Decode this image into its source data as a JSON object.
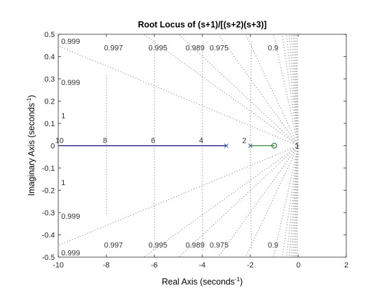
{
  "chart_data": {
    "type": "line",
    "title": "Root Locus of (s+1)/[(s+2)(s+3)]",
    "xlabel": "Real Axis (seconds",
    "xlabel_sup": "-1",
    "xlabel_close": ")",
    "ylabel": "Imaginary Axis (seconds",
    "ylabel_sup": "-1",
    "ylabel_close": ")",
    "xlim": [
      -10,
      2
    ],
    "ylim": [
      -0.5,
      0.5
    ],
    "xticks": [
      -10,
      -8,
      -6,
      -4,
      -2,
      0,
      2
    ],
    "xtick_labels": [
      "-10",
      "-8",
      "-6",
      "-4",
      "-2",
      "0",
      "2"
    ],
    "yticks": [
      -0.5,
      -0.4,
      -0.3,
      -0.2,
      -0.1,
      0,
      0.1,
      0.2,
      0.3,
      0.4,
      0.5
    ],
    "ytick_labels": [
      "-0.5",
      "-0.4",
      "-0.3",
      "-0.2",
      "-0.1",
      "0",
      "0.1",
      "0.2",
      "0.3",
      "0.4",
      "0.5"
    ],
    "series": [
      {
        "color": "#0000b0",
        "points": [
          [
            -10,
            0
          ],
          [
            -3,
            0
          ]
        ]
      },
      {
        "color": "#2a8a2a",
        "points": [
          [
            -2,
            0
          ],
          [
            -1,
            0
          ]
        ]
      }
    ],
    "poles": [
      [
        -3,
        0
      ],
      [
        -2,
        0
      ]
    ],
    "zeros": [
      [
        -1,
        0
      ]
    ],
    "damping_ratios": [
      0.999,
      0.997,
      0.995,
      0.989,
      0.975,
      0.9,
      0.8,
      0.7,
      0.6,
      0.5,
      0.4,
      0.3,
      0.2,
      0.1
    ],
    "damping_labels_left": [
      {
        "text": "0.999",
        "x": -9.88,
        "y": 0.47
      },
      {
        "text": "0.999",
        "x": -9.88,
        "y": 0.285
      },
      {
        "text": "1",
        "x": -9.88,
        "y": 0.135
      },
      {
        "text": "1",
        "x": -9.88,
        "y": -0.165
      },
      {
        "text": "0.999",
        "x": -9.88,
        "y": -0.315
      },
      {
        "text": "0.999",
        "x": -9.88,
        "y": -0.48
      }
    ],
    "damping_labels_top": [
      {
        "text": "0.997",
        "x": -7.7,
        "y": 0.44
      },
      {
        "text": "0.995",
        "x": -5.85,
        "y": 0.44
      },
      {
        "text": "0.989",
        "x": -4.3,
        "y": 0.44
      },
      {
        "text": "0.975",
        "x": -3.3,
        "y": 0.44
      },
      {
        "text": "0.9",
        "x": -1.05,
        "y": 0.44
      }
    ],
    "damping_labels_bottom": [
      {
        "text": "0.997",
        "x": -7.7,
        "y": -0.445
      },
      {
        "text": "0.995",
        "x": -5.85,
        "y": -0.445
      },
      {
        "text": "0.989",
        "x": -4.3,
        "y": -0.445
      },
      {
        "text": "0.975",
        "x": -3.3,
        "y": -0.445
      },
      {
        "text": "0.9",
        "x": -1.05,
        "y": -0.445
      }
    ],
    "frequency_values": [
      10,
      8,
      6,
      4,
      2
    ],
    "frequency_labels": [
      {
        "text": "10",
        "x": -9.95,
        "y": 0.025
      },
      {
        "text": "8",
        "x": -8.05,
        "y": 0.025
      },
      {
        "text": "6",
        "x": -6.05,
        "y": 0.025
      },
      {
        "text": "4",
        "x": -4.05,
        "y": 0.025
      },
      {
        "text": "2",
        "x": -2.25,
        "y": 0.025
      }
    ],
    "small_frequency_labels": [
      {
        "text": "1",
        "x": -0.05,
        "y": 0.0
      }
    ]
  }
}
